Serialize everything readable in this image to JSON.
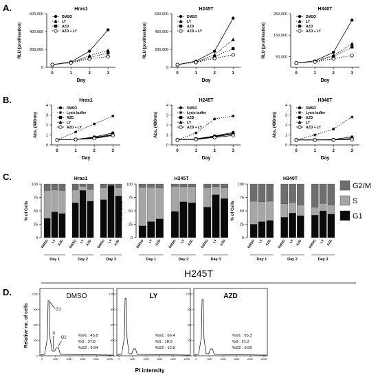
{
  "colors": {
    "axis": "#000000",
    "g1": "#0a0a0a",
    "s": "#a6a6a6",
    "g2m": "#6e6e6e",
    "trace": "#000000"
  },
  "panel_labels": {
    "A": "A.",
    "B": "B.",
    "C": "C.",
    "D": "D."
  },
  "chart_data": [
    {
      "panel": "A",
      "type": "line",
      "title": "Hras1",
      "xlabel": "Day",
      "ylabel": "RLU (proliferation)",
      "x": [
        0,
        1,
        2,
        3
      ],
      "xlim": [
        -0.3,
        3.4
      ],
      "ylim": [
        0,
        600000
      ],
      "yticks": [
        0,
        200000,
        400000,
        600000
      ],
      "ytick_labels": [
        "0",
        "200,000",
        "400,000",
        "600,000"
      ],
      "legend_position": "top-left",
      "series": [
        {
          "name": "DMSO",
          "marker": "circle",
          "dash": "solid",
          "values": [
            30000,
            60000,
            180000,
            420000
          ]
        },
        {
          "name": "LY",
          "marker": "triangle",
          "dash": "dotted",
          "values": [
            30000,
            55000,
            130000,
            190000
          ]
        },
        {
          "name": "AZD",
          "marker": "square",
          "dash": "dotted",
          "values": [
            30000,
            55000,
            110000,
            160000
          ]
        },
        {
          "name": "AZD + LY",
          "marker": "open-circle",
          "dash": "dotted",
          "values": [
            30000,
            50000,
            95000,
            120000
          ]
        }
      ]
    },
    {
      "panel": "A",
      "type": "line",
      "title": "H245T",
      "xlabel": "Day",
      "ylabel": "RLU (proliferation)",
      "x": [
        0,
        1,
        2,
        3
      ],
      "xlim": [
        -0.3,
        3.4
      ],
      "ylim": [
        0,
        600000
      ],
      "yticks": [
        0,
        200000,
        400000,
        600000
      ],
      "ytick_labels": [
        "0",
        "200,000",
        "400,000",
        "600,000"
      ],
      "legend_position": "top-left",
      "series": [
        {
          "name": "DMSO",
          "marker": "circle",
          "dash": "solid",
          "values": [
            30000,
            70000,
            180000,
            550000
          ]
        },
        {
          "name": "LY",
          "marker": "triangle",
          "dash": "dotted",
          "values": [
            30000,
            60000,
            140000,
            310000
          ]
        },
        {
          "name": "AZD",
          "marker": "square",
          "dash": "dotted",
          "values": [
            30000,
            60000,
            120000,
            210000
          ]
        },
        {
          "name": "AZD + LY",
          "marker": "open-circle",
          "dash": "dotted",
          "values": [
            30000,
            55000,
            100000,
            140000
          ]
        }
      ]
    },
    {
      "panel": "A",
      "type": "line",
      "title": "H340T",
      "xlabel": "Day",
      "ylabel": "RLU (proliferation)",
      "x": [
        0,
        1,
        2,
        3
      ],
      "xlim": [
        -0.3,
        3.4
      ],
      "ylim": [
        0,
        250000
      ],
      "yticks": [
        50000,
        150000,
        250000
      ],
      "ytick_labels": [
        "50,000",
        "150,000",
        "250,000"
      ],
      "legend_position": "top-left",
      "series": [
        {
          "name": "DMSO",
          "marker": "circle",
          "dash": "solid",
          "values": [
            20000,
            30000,
            70000,
            220000
          ]
        },
        {
          "name": "LY",
          "marker": "triangle",
          "dash": "dotted",
          "values": [
            20000,
            28000,
            55000,
            110000
          ]
        },
        {
          "name": "AZD",
          "marker": "square",
          "dash": "dotted",
          "values": [
            20000,
            28000,
            50000,
            95000
          ]
        },
        {
          "name": "AZD + LY",
          "marker": "open-circle",
          "dash": "dotted",
          "values": [
            20000,
            25000,
            40000,
            55000
          ]
        }
      ]
    },
    {
      "panel": "B",
      "type": "line",
      "title": "Hras1",
      "xlabel": "Day",
      "ylabel": "Abs. (490nm)",
      "x": [
        0,
        1,
        2,
        3
      ],
      "xlim": [
        -0.3,
        3.4
      ],
      "ylim": [
        0,
        4
      ],
      "yticks": [
        0,
        1,
        2,
        3,
        4
      ],
      "ytick_labels": [
        "0",
        "1",
        "2",
        "3",
        "4"
      ],
      "legend_position": "top-left",
      "series": [
        {
          "name": "DMSO",
          "marker": "circle",
          "dash": "solid",
          "values": [
            0.5,
            0.55,
            0.8,
            1.2
          ]
        },
        {
          "name": "Lysis buffer",
          "marker": "star",
          "dash": "dotted",
          "values": [
            0.5,
            1.3,
            2.1,
            2.9
          ]
        },
        {
          "name": "AZD",
          "marker": "square",
          "dash": "solid",
          "values": [
            0.5,
            0.55,
            0.75,
            1.05
          ]
        },
        {
          "name": "LY",
          "marker": "triangle",
          "dash": "solid",
          "values": [
            0.5,
            0.55,
            0.7,
            1.0
          ]
        },
        {
          "name": "AZD + LY",
          "marker": "open-circle",
          "dash": "solid",
          "values": [
            0.5,
            0.55,
            0.65,
            0.95
          ]
        }
      ]
    },
    {
      "panel": "B",
      "type": "line",
      "title": "H245T",
      "xlabel": "Day",
      "ylabel": "Abs. (490nm)",
      "x": [
        0,
        1,
        2,
        3
      ],
      "xlim": [
        -0.3,
        3.4
      ],
      "ylim": [
        0,
        4
      ],
      "yticks": [
        0,
        1,
        2,
        3,
        4
      ],
      "ytick_labels": [
        "0",
        "1",
        "2",
        "3",
        "4"
      ],
      "legend_position": "top-left",
      "series": [
        {
          "name": "DMSO",
          "marker": "circle",
          "dash": "solid",
          "values": [
            0.5,
            0.6,
            0.9,
            1.25
          ]
        },
        {
          "name": "Lysis buffer",
          "marker": "star",
          "dash": "dotted",
          "values": [
            0.5,
            1.2,
            2.6,
            2.9
          ]
        },
        {
          "name": "AZD",
          "marker": "square",
          "dash": "solid",
          "values": [
            0.5,
            0.6,
            0.85,
            1.15
          ]
        },
        {
          "name": "LY",
          "marker": "triangle",
          "dash": "solid",
          "values": [
            0.5,
            0.58,
            0.8,
            1.1
          ]
        },
        {
          "name": "AZD + LY",
          "marker": "open-circle",
          "dash": "solid",
          "values": [
            0.5,
            0.55,
            0.75,
            0.95
          ]
        }
      ]
    },
    {
      "panel": "B",
      "type": "line",
      "title": "H340T",
      "xlabel": "Day",
      "ylabel": "Abs. (490nm)",
      "x": [
        0,
        1,
        2,
        3
      ],
      "xlim": [
        -0.3,
        3.4
      ],
      "ylim": [
        0,
        4
      ],
      "yticks": [
        0,
        1,
        2,
        3,
        4
      ],
      "ytick_labels": [
        "0",
        "1",
        "2",
        "3",
        "4"
      ],
      "legend_position": "top-left",
      "series": [
        {
          "name": "DMSO",
          "marker": "circle",
          "dash": "solid",
          "values": [
            0.5,
            0.5,
            0.55,
            0.8
          ]
        },
        {
          "name": "Lysis buffer",
          "marker": "star",
          "dash": "dotted",
          "values": [
            0.5,
            1.0,
            1.6,
            2.8
          ]
        },
        {
          "name": "AZD",
          "marker": "square",
          "dash": "solid",
          "values": [
            0.5,
            0.5,
            0.5,
            0.65
          ]
        },
        {
          "name": "LY",
          "marker": "triangle",
          "dash": "solid",
          "values": [
            0.5,
            0.5,
            0.5,
            0.6
          ]
        },
        {
          "name": "AZD + LY",
          "marker": "open-circle",
          "dash": "solid",
          "values": [
            0.5,
            0.5,
            0.5,
            0.55
          ]
        }
      ]
    },
    {
      "panel": "C",
      "type": "bar",
      "stacked": true,
      "title": "Hras1",
      "ylabel": "% of Cells",
      "ylim": [
        0,
        100
      ],
      "yticks": [
        0,
        25,
        50,
        75,
        100
      ],
      "ytick_labels": [
        "0",
        "25",
        "50",
        "75",
        "100"
      ],
      "categories": [
        "DMSO",
        "LY",
        "AZD",
        "DMSO",
        "LY",
        "AZD",
        "DMSO",
        "LY",
        "AZD"
      ],
      "groups": [
        "Day 1",
        "Day 2",
        "Day 3"
      ],
      "series": [
        {
          "name": "G1",
          "values": [
            36,
            48,
            45,
            65,
            88,
            68,
            71,
            97,
            78
          ]
        },
        {
          "name": "S",
          "values": [
            52,
            41,
            43,
            24,
            8,
            22,
            22,
            1,
            15
          ]
        },
        {
          "name": "G2/M",
          "values": [
            12,
            11,
            12,
            11,
            4,
            10,
            7,
            2,
            7
          ]
        }
      ]
    },
    {
      "panel": "C",
      "type": "bar",
      "stacked": true,
      "title": "H245T",
      "ylabel": "% of Cells",
      "ylim": [
        0,
        100
      ],
      "yticks": [
        0,
        25,
        50,
        75,
        100
      ],
      "ytick_labels": [
        "0",
        "25",
        "50",
        "75",
        "100"
      ],
      "categories": [
        "DMSO",
        "LY",
        "AZD",
        "DMSO",
        "LY",
        "AZD",
        "DMSO",
        "LY",
        "AZD"
      ],
      "groups": [
        "Day 1",
        "Day 2",
        "Day 3"
      ],
      "series": [
        {
          "name": "G1",
          "values": [
            22,
            30,
            35,
            49,
            67,
            65,
            57,
            80,
            73
          ]
        },
        {
          "name": "S",
          "values": [
            72,
            64,
            58,
            47,
            28,
            30,
            36,
            15,
            20
          ]
        },
        {
          "name": "G2/M",
          "values": [
            6,
            6,
            7,
            4,
            5,
            5,
            7,
            5,
            7
          ]
        }
      ]
    },
    {
      "panel": "C",
      "type": "bar",
      "stacked": true,
      "title": "H340T",
      "ylabel": "% of Cells",
      "ylim": [
        0,
        100
      ],
      "yticks": [
        0,
        25,
        50,
        75,
        100
      ],
      "ytick_labels": [
        "0",
        "25",
        "50",
        "75",
        "100"
      ],
      "categories": [
        "DMSO",
        "LY",
        "AZD",
        "DMSO",
        "LY",
        "AZD",
        "DMSO",
        "LY",
        "AZD"
      ],
      "groups": [
        "Day 1",
        "Day 2",
        "Day 3"
      ],
      "legend": [
        "G2/M",
        "S",
        "G1"
      ],
      "series": [
        {
          "name": "G1",
          "values": [
            25,
            30,
            32,
            38,
            46,
            41,
            42,
            50,
            44
          ]
        },
        {
          "name": "S",
          "values": [
            43,
            37,
            36,
            25,
            20,
            20,
            15,
            14,
            17
          ]
        },
        {
          "name": "G2/M",
          "values": [
            32,
            33,
            32,
            37,
            34,
            39,
            43,
            36,
            39
          ]
        }
      ]
    }
  ],
  "panel_d": {
    "title": "H245T",
    "ylabel": "Relative no. of cells",
    "xlabel": "PI intensity",
    "yticks": [
      "0",
      "30K",
      "60K",
      "90K",
      "120K"
    ],
    "xticks": [
      "0",
      "50K",
      "100K",
      "150K",
      "200K",
      "250K"
    ],
    "histograms": [
      {
        "label": "DMSO",
        "g1_height": 0.88,
        "g2_height": 0.12,
        "annotations": {
          "g1": "G1",
          "s": "S",
          "g2": "G2"
        },
        "stats": [
          "%G1 : 45.8",
          "%S : 37.8",
          "%G2 : 9.94"
        ]
      },
      {
        "label": "LY",
        "g1_height": 0.92,
        "g2_height": 0.1,
        "stats": [
          "%G1 : 66.4",
          "%S : 18.5",
          "%G2 : 12.8"
        ]
      },
      {
        "label": "AZD",
        "g1_height": 0.9,
        "g2_height": 0.1,
        "stats": [
          "%G1 : 65.3",
          "%S : 21.2",
          "%G2 : 9.55"
        ]
      }
    ]
  }
}
